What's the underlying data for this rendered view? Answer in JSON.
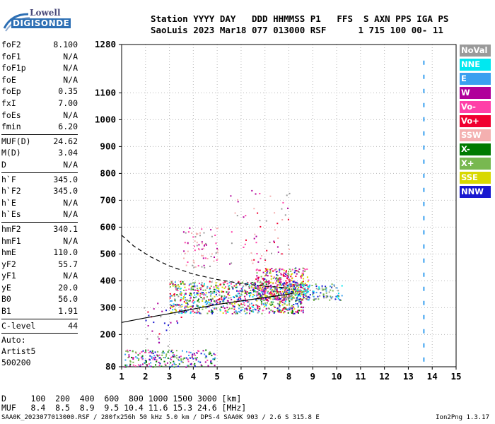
{
  "logo": {
    "line1": "Lowell",
    "line2": "DIGISONDE"
  },
  "header": {
    "line1": "Station YYYY DAY   DDD HHMMSS P1   FFS  S AXN PPS IGA PS",
    "line2": "SaoLuis 2023 Mar18 077 013000 RSF      1 715 100 00- 11"
  },
  "params": [
    {
      "k": "foF2",
      "v": "8.100"
    },
    {
      "k": "foF1",
      "v": "N/A"
    },
    {
      "k": "foF1p",
      "v": "N/A"
    },
    {
      "k": "foE",
      "v": "N/A"
    },
    {
      "k": "foEp",
      "v": "0.35"
    },
    {
      "k": "fxI",
      "v": "7.00"
    },
    {
      "k": "foEs",
      "v": "N/A"
    },
    {
      "k": "fmin",
      "v": "6.20"
    },
    {
      "k": "MUF(D)",
      "v": "24.62",
      "sep": true
    },
    {
      "k": "M(D)",
      "v": "3.04"
    },
    {
      "k": "D",
      "v": "N/A"
    },
    {
      "k": "h`F",
      "v": "345.0",
      "sep": true
    },
    {
      "k": "h`F2",
      "v": "345.0"
    },
    {
      "k": "h`E",
      "v": "N/A"
    },
    {
      "k": "h`Es",
      "v": "N/A"
    },
    {
      "k": "hmF2",
      "v": "340.1",
      "sep": true
    },
    {
      "k": "hmF1",
      "v": "N/A"
    },
    {
      "k": "hmE",
      "v": "110.0"
    },
    {
      "k": "yF2",
      "v": "55.7"
    },
    {
      "k": "yF1",
      "v": "N/A"
    },
    {
      "k": "yE",
      "v": "20.0"
    },
    {
      "k": "B0",
      "v": "56.0"
    },
    {
      "k": "B1",
      "v": "1.91"
    },
    {
      "k": "C-level",
      "v": "44",
      "sep": true
    }
  ],
  "extra": [
    "Auto:",
    "Artist5",
    "500200"
  ],
  "legend": [
    {
      "label": "NoVal",
      "color": "#9a9a9a"
    },
    {
      "label": "NNE",
      "color": "#00e8f0"
    },
    {
      "label": "E",
      "color": "#3aa0f0"
    },
    {
      "label": "W",
      "color": "#b0009a"
    },
    {
      "label": "Vo-",
      "color": "#ff40a8"
    },
    {
      "label": "Vo+",
      "color": "#f00030"
    },
    {
      "label": "SSW",
      "color": "#f4b0b0"
    },
    {
      "label": "X-",
      "color": "#007a00"
    },
    {
      "label": "X+",
      "color": "#78b850"
    },
    {
      "label": "SSE",
      "color": "#d8d800"
    },
    {
      "label": "NNW",
      "color": "#1818d0"
    }
  ],
  "bottom": {
    "line1": "D     100  200  400  600  800 1000 1500 3000 [km]",
    "line2": "MUF   8.4  8.5  8.9  9.5 10.4 11.6 15.3 24.6 [MHz]"
  },
  "footer": "SAA0K_2023077013000.RSF / 280fx256h 50 kHz 5.0 km / DPS-4 SAA0K 903 / 2.6 S 315.8 E",
  "version": "Ion2Png 1.3.17",
  "chart_data": {
    "type": "scatter",
    "xlim": [
      1,
      15
    ],
    "ylim": [
      80,
      1280
    ],
    "xticks": [
      1,
      2,
      3,
      4,
      5,
      6,
      7,
      8,
      9,
      10,
      11,
      12,
      13,
      14,
      15
    ],
    "yticks": [
      80,
      200,
      300,
      400,
      500,
      600,
      700,
      800,
      900,
      1000,
      1100,
      1280
    ],
    "grid": true,
    "legend_position": "right",
    "clusters": [
      {
        "series": "F-trace",
        "x": [
          3.0,
          8.6
        ],
        "y": [
          280,
          400
        ],
        "count": 900,
        "colors": [
          "#1818d0",
          "#b0009a",
          "#f00030",
          "#ff40a8",
          "#3aa0f0",
          "#00e8f0",
          "#d8d800",
          "#007a00",
          "#78b850",
          "#9a9a9a"
        ]
      },
      {
        "series": "F-trace-high",
        "x": [
          6.6,
          8.8
        ],
        "y": [
          330,
          450
        ],
        "count": 350,
        "colors": [
          "#f00030",
          "#b0009a",
          "#ff40a8",
          "#1818d0",
          "#d8d800",
          "#78b850"
        ]
      },
      {
        "series": "F-X",
        "x": [
          7.8,
          10.2
        ],
        "y": [
          330,
          390
        ],
        "count": 160,
        "colors": [
          "#3aa0f0",
          "#00e8f0",
          "#9a9a9a",
          "#78b850",
          "#1818d0"
        ]
      },
      {
        "series": "multihop",
        "x": [
          3.5,
          5.0
        ],
        "y": [
          450,
          600
        ],
        "count": 70,
        "colors": [
          "#b0009a",
          "#ff40a8",
          "#f4b0b0",
          "#9a9a9a"
        ]
      },
      {
        "series": "spread-high",
        "x": [
          5.5,
          8.0
        ],
        "y": [
          460,
          740
        ],
        "count": 60,
        "colors": [
          "#f00030",
          "#b0009a",
          "#ff40a8",
          "#f4b0b0",
          "#9a9a9a"
        ]
      },
      {
        "series": "low",
        "x": [
          1.1,
          4.9
        ],
        "y": [
          80,
          145
        ],
        "count": 220,
        "colors": [
          "#b0009a",
          "#1818d0",
          "#3aa0f0",
          "#007a00",
          "#78b850",
          "#ff40a8"
        ]
      },
      {
        "series": "sparse-low",
        "x": [
          1.8,
          3.6
        ],
        "y": [
          150,
          320
        ],
        "count": 35,
        "colors": [
          "#1818d0",
          "#b0009a",
          "#f00030",
          "#9a9a9a"
        ]
      }
    ],
    "vertical_dashes": {
      "x": 13.65,
      "y": [
        80,
        1220
      ],
      "color": "#3aa0f0"
    },
    "profile_dashed": {
      "x": [
        1.0,
        1.5,
        2.2,
        3.0,
        4.0,
        5.0,
        6.0,
        7.0,
        7.8
      ],
      "y": [
        570,
        530,
        490,
        455,
        425,
        405,
        390,
        380,
        375
      ]
    },
    "profile_solid": {
      "x": [
        1.0,
        2.0,
        3.0,
        4.0,
        5.0,
        6.0,
        7.0,
        8.0,
        8.2
      ],
      "y": [
        245,
        262,
        278,
        295,
        312,
        325,
        338,
        350,
        355
      ]
    }
  }
}
